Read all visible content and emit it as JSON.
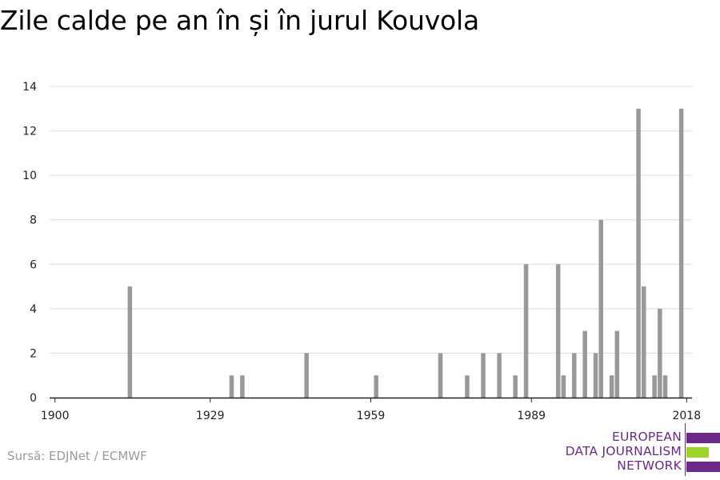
{
  "title": "Zile calde pe an în și în jurul Kouvola",
  "source": "Sursă: EDJNet / ECMWF",
  "logo": {
    "lines": [
      "EUROPEAN",
      "DATA JOURNALISM",
      "NETWORK"
    ],
    "colors": {
      "purple": "#6b2a8a",
      "green": "#9ed42a"
    }
  },
  "chart_data": {
    "type": "bar",
    "title": "Zile calde pe an în și în jurul Kouvola",
    "xlabel": "",
    "ylabel": "",
    "xlim": [
      1899,
      2019
    ],
    "ylim": [
      0,
      14
    ],
    "x_ticks": [
      1900,
      1929,
      1959,
      1989,
      2018
    ],
    "y_ticks": [
      0,
      2,
      4,
      6,
      8,
      10,
      12,
      14
    ],
    "grid": true,
    "bar_color": "#999999",
    "x": [
      1914,
      1933,
      1935,
      1947,
      1960,
      1972,
      1977,
      1980,
      1983,
      1986,
      1988,
      1994,
      1995,
      1997,
      1999,
      2001,
      2002,
      2004,
      2005,
      2009,
      2010,
      2012,
      2013,
      2014,
      2017
    ],
    "values": [
      5,
      1,
      1,
      2,
      1,
      2,
      1,
      2,
      2,
      1,
      6,
      6,
      1,
      2,
      3,
      2,
      8,
      1,
      3,
      13,
      5,
      1,
      4,
      1,
      13
    ]
  }
}
